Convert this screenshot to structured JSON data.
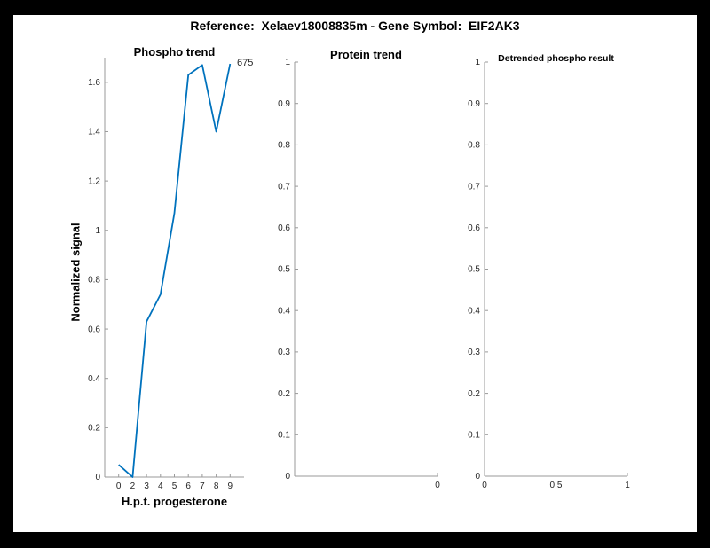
{
  "figure_title": "Reference:  Xelaev18008835m - Gene Symbol:  EIF2AK3",
  "colors": {
    "background": "#000000",
    "figure": "#ffffff",
    "line": "#0072BD",
    "axis": "#9a9a9a",
    "tick_text": "#262626"
  },
  "chart_data": [
    {
      "type": "line",
      "title": "Phospho trend",
      "xlabel": "H.p.t. progesterone",
      "ylabel": "Normalized signal",
      "categories": [
        "0",
        "2",
        "3",
        "4",
        "5",
        "6",
        "7",
        "8",
        "9"
      ],
      "values": [
        0.05,
        0.0,
        0.63,
        0.74,
        1.07,
        1.63,
        1.67,
        1.4,
        1.675
      ],
      "ylim": [
        0,
        1.7
      ],
      "xlim_index": [
        0,
        10
      ],
      "y_tick_labels": [
        "0",
        "0.2",
        "0.4",
        "0.6",
        "0.8",
        "1",
        "1.2",
        "1.4",
        "1.6"
      ],
      "line_color": "#0072BD",
      "annotation": "675",
      "grid": false,
      "legend": "none"
    },
    {
      "type": "line",
      "title": "Protein trend",
      "xlabel": "",
      "ylabel": "",
      "categories": [],
      "values": [],
      "ylim": [
        0,
        1
      ],
      "y_tick_labels": [
        "0",
        "0.1",
        "0.2",
        "0.3",
        "0.4",
        "0.5",
        "0.6",
        "0.7",
        "0.8",
        "0.9",
        "1"
      ],
      "x_ticks": [
        {
          "label": "0",
          "frac": 1
        }
      ],
      "grid": false,
      "legend": "none"
    },
    {
      "type": "line",
      "title": "Detrended phospho result",
      "xlabel": "",
      "ylabel": "",
      "categories": [],
      "values": [],
      "ylim": [
        0,
        1
      ],
      "y_tick_labels": [
        "0",
        "0.1",
        "0.2",
        "0.3",
        "0.4",
        "0.5",
        "0.6",
        "0.7",
        "0.8",
        "0.9",
        "1"
      ],
      "x_ticks": [
        {
          "label": "0",
          "frac": 0
        },
        {
          "label": "0.5",
          "frac": 0.5
        },
        {
          "label": "1",
          "frac": 1
        }
      ],
      "grid": false,
      "legend": "none"
    }
  ]
}
